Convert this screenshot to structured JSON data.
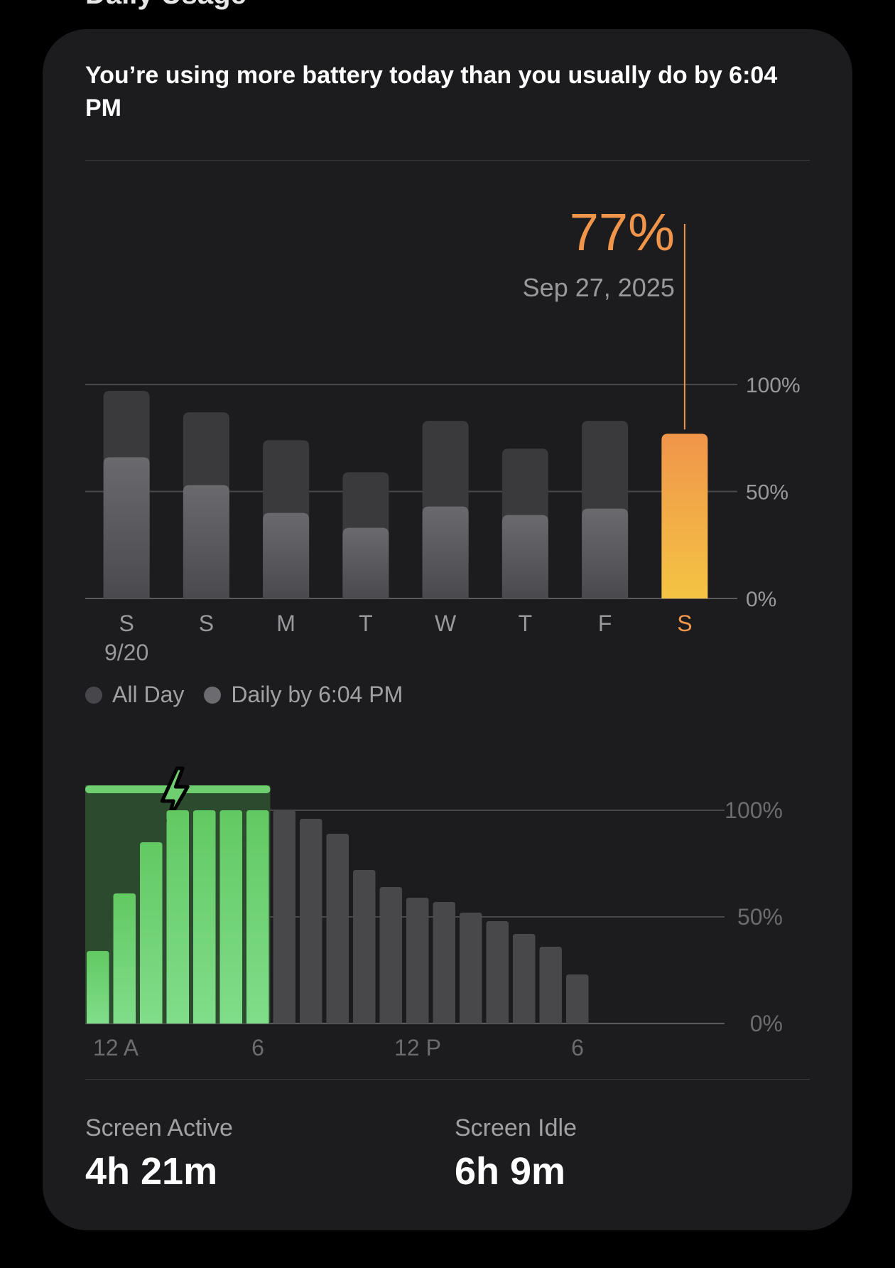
{
  "section_title": "Daily Usage",
  "insight": "You’re using more battery today than you usually do by 6:04 PM",
  "weekly": {
    "selected_value": "77%",
    "selected_date": "Sep 27, 2025",
    "legend": [
      {
        "label": "All Day",
        "color": "#47474b"
      },
      {
        "label": "Daily by 6:04 PM",
        "color": "#6c6c70"
      }
    ]
  },
  "hourly": {
    "charge_icon": "bolt-icon",
    "charging_hours": [
      0,
      7
    ]
  },
  "stats": {
    "active_label": "Screen Active",
    "active_value": "4h 21m",
    "idle_label": "Screen Idle",
    "idle_value": "6h 9m"
  },
  "colors": {
    "card": "#1c1c1e",
    "accent_orange": "#f0954a",
    "accent_orange_light": "#f4c444",
    "charging_green": "#6fce6f",
    "bar_gray": "#48484a"
  },
  "chart_data": [
    {
      "type": "bar",
      "categories": [
        "S",
        "S",
        "M",
        "T",
        "W",
        "T",
        "F",
        "S"
      ],
      "sublabels": [
        "9/20",
        "",
        "",
        "",
        "",
        "",
        "",
        ""
      ],
      "series": [
        {
          "name": "All Day",
          "values": [
            97,
            87,
            74,
            59,
            83,
            70,
            83,
            77
          ]
        },
        {
          "name": "Daily by 6:04 PM",
          "values": [
            66,
            53,
            40,
            33,
            43,
            39,
            42,
            77
          ]
        }
      ],
      "highlight_index": 7,
      "yticks": [
        "0%",
        "50%",
        "100%"
      ],
      "ylim": [
        0,
        100
      ],
      "grid": true
    },
    {
      "type": "bar",
      "x": [
        0,
        1,
        2,
        3,
        4,
        5,
        6,
        7,
        8,
        9,
        10,
        11,
        12,
        13,
        14,
        15,
        16,
        17,
        18
      ],
      "values": [
        34,
        61,
        85,
        100,
        100,
        100,
        100,
        100,
        96,
        89,
        72,
        64,
        59,
        57,
        52,
        48,
        42,
        36,
        23
      ],
      "xticks": [
        {
          "hour": 0,
          "label": "12 A"
        },
        {
          "hour": 6,
          "label": "6"
        },
        {
          "hour": 12,
          "label": "12 P"
        },
        {
          "hour": 18,
          "label": "6"
        }
      ],
      "yticks": [
        "0%",
        "50%",
        "100%"
      ],
      "ylim": [
        0,
        100
      ],
      "grid": true
    }
  ]
}
